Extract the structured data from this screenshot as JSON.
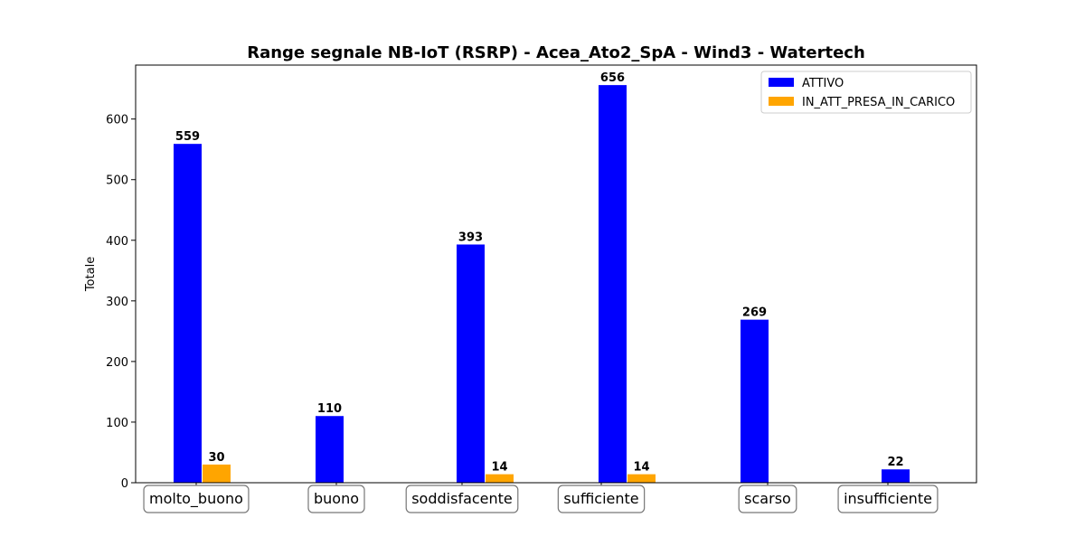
{
  "chart_data": {
    "type": "bar",
    "title": "Range segnale NB-IoT (RSRP) - Acea_Ato2_SpA - Wind3 - Watertech",
    "xlabel": "",
    "ylabel": "Totale",
    "ylim": [
      0,
      689
    ],
    "yticks": [
      0,
      100,
      200,
      300,
      400,
      500,
      600
    ],
    "categories": [
      "molto_buono",
      "buono",
      "soddisfacente",
      "sufficiente",
      "scarso",
      "insufficiente"
    ],
    "series": [
      {
        "name": "ATTIVO",
        "color": "#0000ff",
        "values": [
          559,
          110,
          393,
          656,
          269,
          22
        ]
      },
      {
        "name": "IN_ATT_PRESA_IN_CARICO",
        "color": "#ffa500",
        "values": [
          30,
          null,
          14,
          14,
          null,
          null
        ]
      }
    ],
    "legend_position": "top-right",
    "grid": false,
    "data_labels": true
  }
}
